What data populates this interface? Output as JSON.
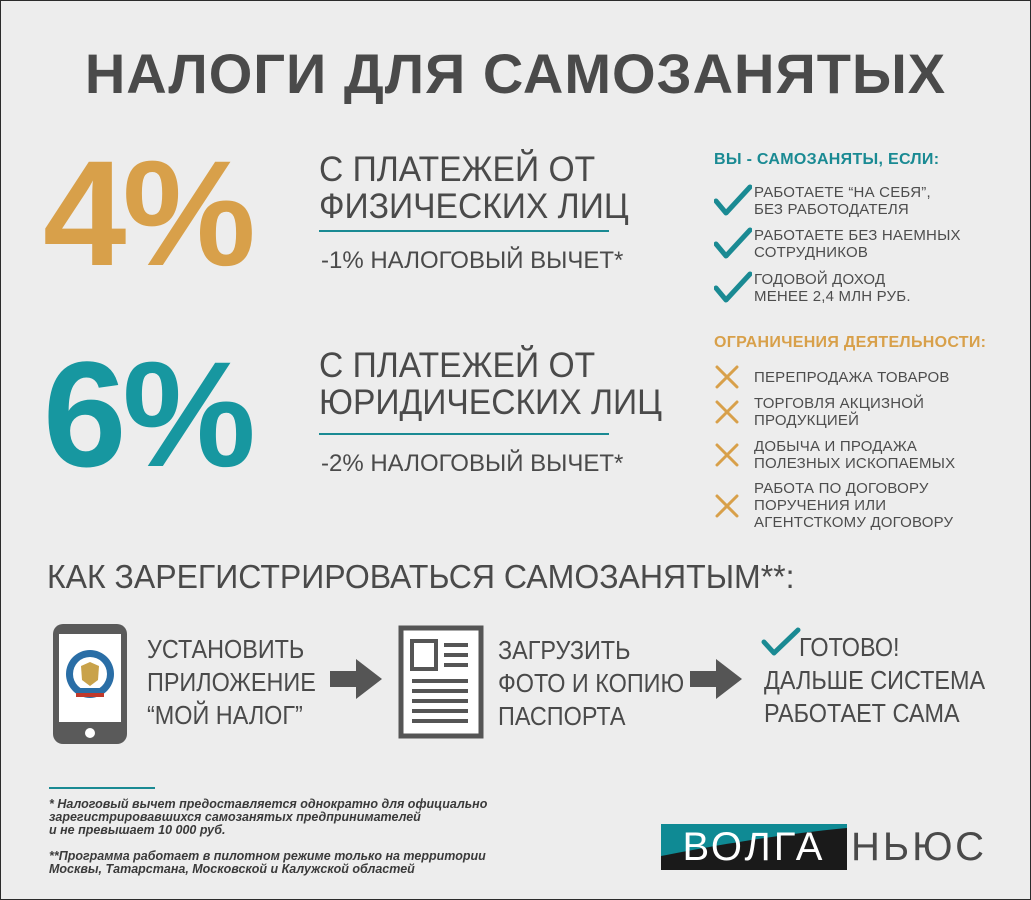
{
  "title": "НАЛОГИ ДЛЯ САМОЗАНЯТЫХ",
  "rates": [
    {
      "percent": "4%",
      "line1": "С ПЛАТЕЖЕЙ ОТ",
      "line2": "ФИЗИЧЕСКИХ ЛИЦ",
      "deduction": "-1% НАЛОГОВЫЙ ВЫЧЕТ*",
      "color": "#d8a04a"
    },
    {
      "percent": "6%",
      "line1": "С ПЛАТЕЖЕЙ ОТ",
      "line2": "ЮРИДИЧЕСКИХ ЛИЦ",
      "deduction": "-2% НАЛОГОВЫЙ ВЫЧЕТ*",
      "color": "#1797a0"
    }
  ],
  "conditions": {
    "heading": "ВЫ - САМОЗАНЯТЫ, ЕСЛИ:",
    "heading_color": "#1a8a93",
    "icon": "check-icon",
    "items": [
      {
        "line1": "РАБОТАЕТЕ “НА СЕБЯ”,",
        "line2": "БЕЗ РАБОТОДАТЕЛЯ"
      },
      {
        "line1": "РАБОТАЕТЕ БЕЗ НАЕМНЫХ",
        "line2": "СОТРУДНИКОВ"
      },
      {
        "line1": "ГОДОВОЙ ДОХОД",
        "line2": "МЕНЕЕ 2,4 МЛН РУБ."
      }
    ]
  },
  "restrictions": {
    "heading": "ОГРАНИЧЕНИЯ ДЕЯТЕЛЬНОСТИ:",
    "heading_color": "#d8a04a",
    "icon": "cross-icon",
    "items": [
      {
        "line1": "ПЕРЕПРОДАЖА ТОВАРОВ",
        "line2": "",
        "line3": ""
      },
      {
        "line1": "ТОРГОВЛЯ АКЦИЗНОЙ",
        "line2": "ПРОДУКЦИЕЙ",
        "line3": ""
      },
      {
        "line1": "ДОБЫЧА И ПРОДАЖА",
        "line2": "ПОЛЕЗНЫХ ИСКОПАЕМЫХ",
        "line3": ""
      },
      {
        "line1": "РАБОТА ПО ДОГОВОРУ",
        "line2": "ПОРУЧЕНИЯ ИЛИ",
        "line3": "АГЕНТСТКОМУ ДОГОВОРУ"
      }
    ]
  },
  "howto": {
    "heading": "КАК ЗАРЕГИСТРИРОВАТЬСЯ САМОЗАНЯТЫМ**:",
    "steps": [
      {
        "icon": "phone-app-icon",
        "line1": "УСТАНОВИТЬ",
        "line2": "ПРИЛОЖЕНИЕ",
        "line3": "“МОЙ НАЛОГ”"
      },
      {
        "icon": "document-icon",
        "line1": "ЗАГРУЗИТЬ",
        "line2": "ФОТО И КОПИЮ",
        "line3": "ПАСПОРТА"
      },
      {
        "icon": "check-icon",
        "line1": "ГОТОВО!",
        "line2": "ДАЛЬШЕ СИСТЕМА",
        "line3": "РАБОТАЕТ САМА"
      }
    ],
    "arrow_icon": "arrow-right-icon"
  },
  "footnotes": {
    "note1_line1": "* Налоговый вычет предоставляется однократно для официально",
    "note1_line2": "зарегистрировавшихся самозанятых предпринимателей",
    "note1_line3": "и не превышает 10 000 руб.",
    "note2_line1": "**Программа работает в пилотном режиме только на территории",
    "note2_line2": "Москвы, Татарстана, Московской и Калужской областей"
  },
  "logo": {
    "left": "ВОЛГА",
    "right": "НЬЮС"
  },
  "colors": {
    "background": "#ededed",
    "gold": "#d8a04a",
    "teal": "#1797a0",
    "text": "#4a4a4a"
  }
}
